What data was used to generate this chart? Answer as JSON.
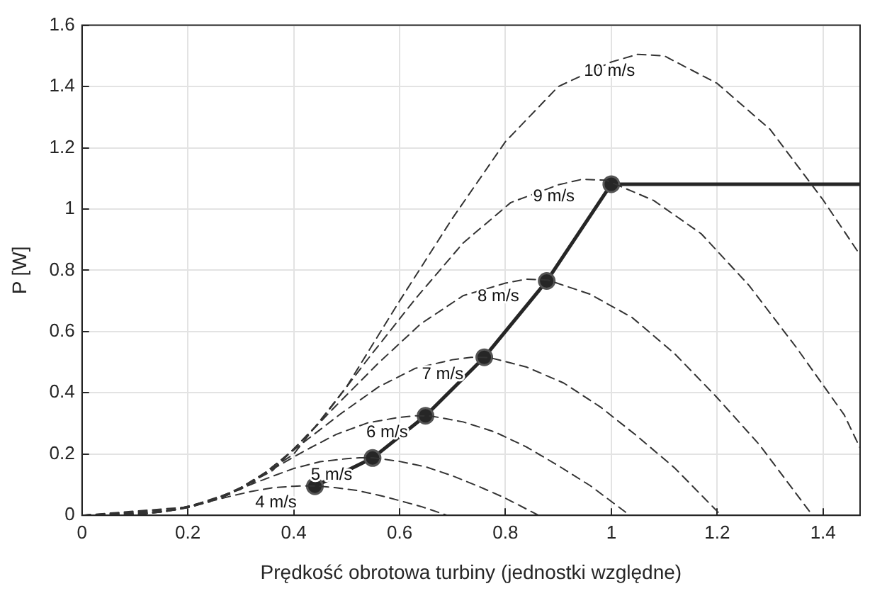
{
  "chart_data": {
    "type": "line",
    "xlabel": "Prędkość obrotowa turbiny (jednostki względne)",
    "ylabel": "P [W]",
    "xlim": [
      0,
      1.47
    ],
    "xticks": [
      0,
      0.2,
      0.4,
      0.6,
      0.8,
      1,
      1.2,
      1.4
    ],
    "ylim": [
      0,
      1.6
    ],
    "yticks": [
      0,
      0.2,
      0.4,
      0.6,
      0.8,
      1,
      1.2,
      1.4,
      1.6
    ],
    "grid": true,
    "legend": false,
    "series": [
      {
        "color": "#333333",
        "line_style": "dashed",
        "marker": "none",
        "x": [
          0,
          0.08,
          0.12,
          0.16,
          0.2,
          0.24,
          0.28,
          0.32,
          0.36,
          0.4,
          0.42,
          0.44,
          0.48,
          0.52,
          0.56,
          0.6,
          0.64,
          0.69
        ],
        "values": [
          0,
          0.002,
          0.005,
          0.013,
          0.027,
          0.045,
          0.062,
          0.078,
          0.09,
          0.095,
          0.096,
          0.096,
          0.09,
          0.081,
          0.066,
          0.048,
          0.029,
          0
        ]
      },
      {
        "color": "#333333",
        "line_style": "dashed",
        "marker": "none",
        "x": [
          0,
          0.1,
          0.15,
          0.2,
          0.25,
          0.3,
          0.35,
          0.4,
          0.45,
          0.5,
          0.525,
          0.55,
          0.6,
          0.65,
          0.7,
          0.75,
          0.8,
          0.8625
        ],
        "values": [
          0,
          0.003,
          0.011,
          0.025,
          0.053,
          0.088,
          0.121,
          0.153,
          0.175,
          0.185,
          0.188,
          0.188,
          0.176,
          0.158,
          0.129,
          0.094,
          0.056,
          0
        ]
      },
      {
        "color": "#333333",
        "line_style": "dashed",
        "marker": "none",
        "x": [
          0,
          0.12,
          0.18,
          0.24,
          0.3,
          0.36,
          0.42,
          0.48,
          0.54,
          0.6,
          0.63,
          0.66,
          0.72,
          0.78,
          0.84,
          0.9,
          0.96,
          1.035
        ],
        "values": [
          0,
          0.006,
          0.018,
          0.043,
          0.091,
          0.151,
          0.21,
          0.264,
          0.302,
          0.32,
          0.325,
          0.324,
          0.305,
          0.272,
          0.223,
          0.162,
          0.097,
          0
        ]
      },
      {
        "color": "#333333",
        "line_style": "dashed",
        "marker": "none",
        "x": [
          0,
          0.14,
          0.21,
          0.28,
          0.35,
          0.42,
          0.49,
          0.56,
          0.63,
          0.7,
          0.735,
          0.77,
          0.84,
          0.91,
          0.98,
          1.05,
          1.12,
          1.2075
        ],
        "values": [
          0,
          0.009,
          0.029,
          0.069,
          0.144,
          0.24,
          0.333,
          0.419,
          0.48,
          0.508,
          0.516,
          0.515,
          0.484,
          0.432,
          0.353,
          0.257,
          0.154,
          0
        ]
      },
      {
        "color": "#333333",
        "line_style": "dashed",
        "marker": "none",
        "x": [
          0,
          0.16,
          0.24,
          0.32,
          0.4,
          0.48,
          0.56,
          0.64,
          0.72,
          0.8,
          0.84,
          0.88,
          0.96,
          1.04,
          1.12,
          1.2,
          1.28,
          1.38
        ],
        "values": [
          0,
          0.014,
          0.044,
          0.102,
          0.215,
          0.358,
          0.497,
          0.625,
          0.717,
          0.758,
          0.771,
          0.768,
          0.722,
          0.645,
          0.527,
          0.384,
          0.23,
          0
        ]
      },
      {
        "color": "#333333",
        "line_style": "dashed",
        "marker": "none",
        "x": [
          0,
          0.18,
          0.27,
          0.36,
          0.45,
          0.54,
          0.63,
          0.72,
          0.81,
          0.9,
          0.945,
          0.99,
          1.08,
          1.17,
          1.26,
          1.35,
          1.44,
          1.47
        ],
        "values": [
          0,
          0.02,
          0.062,
          0.146,
          0.306,
          0.51,
          0.707,
          0.889,
          1.021,
          1.079,
          1.097,
          1.094,
          1.028,
          0.919,
          0.751,
          0.547,
          0.328,
          0.22
        ]
      },
      {
        "color": "#333333",
        "line_style": "dashed",
        "marker": "none",
        "x": [
          0,
          0.2,
          0.3,
          0.4,
          0.5,
          0.6,
          0.7,
          0.8,
          0.9,
          1.0,
          1.05,
          1.1,
          1.2,
          1.3,
          1.4,
          1.47
        ],
        "values": [
          0,
          0.027,
          0.085,
          0.2,
          0.42,
          0.7,
          0.97,
          1.22,
          1.4,
          1.48,
          1.505,
          1.5,
          1.41,
          1.26,
          1.03,
          0.85
        ]
      },
      {
        "color": "#262626",
        "line_style": "solid",
        "marker": "circle",
        "x": [
          0.44,
          0.549,
          0.649,
          0.76,
          0.878,
          1.0
        ],
        "values": [
          0.095,
          0.187,
          0.325,
          0.516,
          0.765,
          1.081
        ]
      },
      {
        "color": "#262626",
        "line_style": "solid",
        "marker": "none",
        "x": [
          1.0,
          1.47
        ],
        "values": [
          1.081,
          1.081
        ]
      }
    ],
    "annotations": [
      "4 m/s",
      "5 m/s",
      "6 m/s",
      "7 m/s",
      "8 m/s",
      "9 m/s",
      "10 m/s"
    ]
  }
}
